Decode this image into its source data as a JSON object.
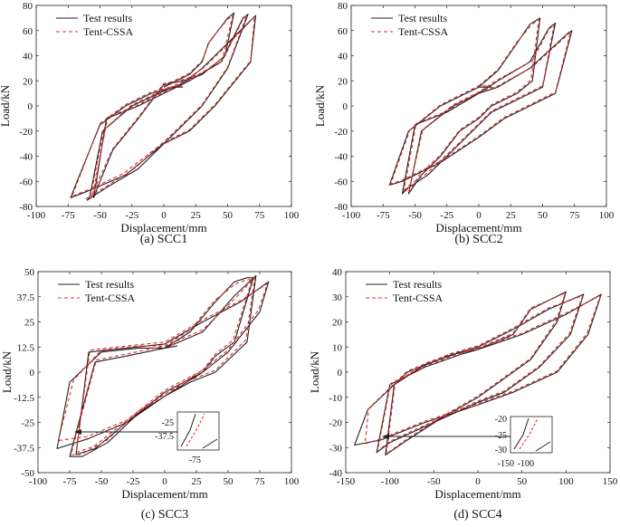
{
  "chart_data": [
    {
      "type": "line",
      "caption": "(a) SCC1",
      "xlabel": "Displacement/mm",
      "ylabel": "Load/kN",
      "xlim": [
        -100,
        100
      ],
      "ylim": [
        -80,
        80
      ],
      "xticks": [
        -100,
        -75,
        -50,
        -25,
        0,
        25,
        50,
        75,
        100
      ],
      "yticks": [
        -80,
        -60,
        -40,
        -20,
        0,
        20,
        40,
        60,
        80
      ],
      "legend": [
        "Test results",
        "Tent-CSSA"
      ],
      "legend_position": "top-left",
      "series": [
        {
          "name": "Test results",
          "x": [
            0,
            20,
            30,
            35,
            50,
            55,
            48,
            30,
            15,
            0,
            -20,
            -40,
            -50,
            -55,
            -45,
            -20,
            0,
            20,
            45,
            62,
            66,
            50,
            30,
            10,
            -20,
            -45,
            -60,
            -58,
            -48,
            -25,
            0,
            15,
            30,
            60,
            72,
            68,
            60,
            40,
            20,
            0,
            -30,
            -60,
            -73,
            -68,
            -50,
            -30,
            -10,
            5,
            10,
            15
          ],
          "y": [
            15,
            25,
            35,
            50,
            70,
            74,
            40,
            25,
            20,
            17,
            -10,
            -35,
            -60,
            -73,
            -10,
            0,
            10,
            20,
            35,
            70,
            73,
            30,
            0,
            -20,
            -50,
            -65,
            -75,
            -72,
            -20,
            0,
            12,
            18,
            30,
            60,
            72,
            35,
            25,
            0,
            -20,
            -30,
            -55,
            -68,
            -73,
            -60,
            -15,
            0,
            10,
            14,
            15,
            15
          ]
        },
        {
          "name": "Tent-CSSA",
          "x": [
            0,
            20,
            30,
            36,
            50,
            54,
            46,
            30,
            15,
            0,
            -20,
            -40,
            -52,
            -56,
            -44,
            -20,
            0,
            20,
            46,
            62,
            65,
            50,
            30,
            10,
            -22,
            -45,
            -61,
            -57,
            -47,
            -25,
            0,
            15,
            32,
            60,
            71,
            68,
            60,
            40,
            20,
            0,
            -32,
            -60,
            -72,
            -67,
            -50,
            -30,
            -10,
            5,
            10,
            15
          ],
          "y": [
            16,
            26,
            36,
            52,
            69,
            72,
            38,
            26,
            21,
            18,
            -9,
            -34,
            -61,
            -72,
            -9,
            1,
            11,
            21,
            36,
            69,
            72,
            31,
            1,
            -19,
            -49,
            -64,
            -74,
            -70,
            -19,
            1,
            13,
            19,
            31,
            59,
            71,
            36,
            26,
            1,
            -19,
            -29,
            -54,
            -67,
            -72,
            -59,
            -14,
            1,
            11,
            15,
            16,
            16
          ]
        }
      ]
    },
    {
      "type": "line",
      "caption": "(b) SCC2",
      "xlabel": "Displacement/mm",
      "ylabel": "Load/kN",
      "xlim": [
        -100,
        100
      ],
      "ylim": [
        -80,
        80
      ],
      "xticks": [
        -100,
        -75,
        -50,
        -25,
        0,
        25,
        50,
        75,
        100
      ],
      "yticks": [
        -80,
        -60,
        -40,
        -20,
        0,
        20,
        40,
        60,
        80
      ],
      "legend": [
        "Test results",
        "Tent-CSSA"
      ],
      "legend_position": "top-left",
      "series": [
        {
          "name": "Test results",
          "x": [
            0,
            15,
            30,
            40,
            48,
            42,
            30,
            10,
            0,
            -15,
            -30,
            -45,
            -55,
            -45,
            -20,
            0,
            15,
            40,
            55,
            60,
            50,
            30,
            10,
            -15,
            -40,
            -55,
            -60,
            -50,
            -25,
            0,
            15,
            40,
            70,
            73,
            60,
            40,
            20,
            0,
            -30,
            -60,
            -70,
            -55,
            -30,
            -10,
            0,
            10
          ],
          "y": [
            15,
            28,
            50,
            65,
            70,
            20,
            10,
            0,
            -10,
            -20,
            -40,
            -55,
            -70,
            -20,
            0,
            10,
            20,
            35,
            62,
            66,
            15,
            5,
            -5,
            -30,
            -55,
            -65,
            -70,
            -15,
            -5,
            10,
            15,
            30,
            58,
            60,
            10,
            0,
            -10,
            -25,
            -45,
            -60,
            -63,
            -20,
            0,
            10,
            15,
            15
          ]
        },
        {
          "name": "Tent-CSSA",
          "x": [
            0,
            15,
            30,
            41,
            47,
            41,
            30,
            10,
            0,
            -15,
            -30,
            -46,
            -55,
            -44,
            -20,
            0,
            15,
            42,
            55,
            59,
            50,
            30,
            10,
            -15,
            -41,
            -56,
            -59,
            -49,
            -25,
            0,
            15,
            42,
            70,
            72,
            60,
            40,
            20,
            0,
            -30,
            -60,
            -69,
            -54,
            -30,
            -10,
            0,
            10
          ],
          "y": [
            16,
            29,
            51,
            64,
            69,
            21,
            11,
            1,
            -9,
            -19,
            -39,
            -54,
            -69,
            -19,
            1,
            11,
            21,
            36,
            61,
            65,
            16,
            6,
            -4,
            -29,
            -54,
            -64,
            -69,
            -14,
            -4,
            11,
            16,
            31,
            57,
            59,
            11,
            1,
            -9,
            -24,
            -44,
            -59,
            -62,
            -19,
            1,
            11,
            16,
            16
          ]
        }
      ]
    },
    {
      "type": "line",
      "caption": "(c) SCC3",
      "xlabel": "Displacement/mm",
      "ylabel": "Load/kN",
      "xlim": [
        -100,
        100
      ],
      "ylim": [
        -50,
        50
      ],
      "xticks": [
        -100,
        -75,
        -50,
        -25,
        0,
        25,
        50,
        75,
        100
      ],
      "yticks": [
        -50,
        -37.5,
        -25,
        -12.5,
        0,
        12.5,
        25,
        37.5,
        50
      ],
      "legend": [
        "Test results",
        "Tent-CSSA"
      ],
      "legend_position": "top-left",
      "inset_labels": [
        "-25",
        "-37.5",
        "-75"
      ],
      "series": [
        {
          "name": "Test results",
          "x": [
            0,
            20,
            40,
            55,
            65,
            70,
            55,
            40,
            30,
            10,
            -20,
            -45,
            -65,
            -75,
            -55,
            -30,
            0,
            30,
            55,
            72,
            65,
            40,
            20,
            0,
            -30,
            -55,
            -70,
            -60,
            -30,
            0,
            30,
            60,
            82,
            75,
            50,
            30,
            0,
            -30,
            -60,
            -85,
            -75,
            -50,
            -20,
            0,
            10
          ],
          "y": [
            12,
            20,
            35,
            45,
            47,
            47,
            15,
            8,
            0,
            -8,
            -20,
            -35,
            -42,
            -42,
            5,
            8,
            12,
            20,
            38,
            48,
            15,
            0,
            -5,
            -12,
            -25,
            -38,
            -41,
            10,
            12,
            14,
            25,
            35,
            45,
            30,
            10,
            0,
            -10,
            -25,
            -33,
            -38,
            -5,
            10,
            12,
            12,
            13
          ]
        },
        {
          "name": "Tent-CSSA",
          "x": [
            0,
            20,
            40,
            56,
            65,
            69,
            54,
            40,
            30,
            10,
            -20,
            -46,
            -66,
            -74,
            -54,
            -30,
            0,
            30,
            56,
            71,
            64,
            40,
            20,
            0,
            -30,
            -56,
            -70,
            -59,
            -30,
            0,
            30,
            61,
            81,
            74,
            50,
            30,
            0,
            -30,
            -61,
            -84,
            -72,
            -50,
            -20,
            0,
            10
          ],
          "y": [
            13,
            21,
            36,
            44,
            46,
            46,
            16,
            9,
            1,
            -7,
            -19,
            -34,
            -41,
            -41,
            6,
            9,
            13,
            21,
            37,
            47,
            16,
            1,
            -4,
            -11,
            -24,
            -37,
            -40,
            11,
            13,
            15,
            26,
            36,
            44,
            31,
            11,
            1,
            -9,
            -24,
            -32,
            -34,
            -4,
            11,
            13,
            13,
            14
          ]
        }
      ]
    },
    {
      "type": "line",
      "caption": "(d) SCC4",
      "xlabel": "Displacement/mm",
      "ylabel": "Load/kN",
      "xlim": [
        -150,
        150
      ],
      "ylim": [
        -40,
        40
      ],
      "xticks": [
        -150,
        -100,
        -50,
        0,
        50,
        100,
        150
      ],
      "yticks": [
        -40,
        -30,
        -20,
        -10,
        0,
        10,
        20,
        30,
        40
      ],
      "legend": [
        "Test results",
        "Tent-CSSA"
      ],
      "legend_position": "top-left",
      "inset_labels": [
        "-20",
        "-25",
        "-30",
        "-150",
        "-100"
      ],
      "series": [
        {
          "name": "Test results",
          "x": [
            0,
            40,
            60,
            100,
            90,
            60,
            20,
            0,
            -40,
            -80,
            -105,
            -95,
            -60,
            -20,
            0,
            40,
            80,
            120,
            105,
            70,
            30,
            0,
            -50,
            -100,
            -115,
            -100,
            -60,
            -20,
            0,
            50,
            100,
            140,
            125,
            90,
            40,
            0,
            -60,
            -110,
            -140,
            -125,
            -80,
            -30,
            0
          ],
          "y": [
            9,
            15,
            25,
            32,
            20,
            5,
            -5,
            -10,
            -18,
            -27,
            -33,
            -5,
            3,
            8,
            10,
            17,
            25,
            31,
            15,
            2,
            -8,
            -12,
            -20,
            -28,
            -32,
            -5,
            2,
            7,
            9,
            15,
            23,
            31,
            15,
            0,
            -8,
            -13,
            -20,
            -27,
            -29,
            -15,
            0,
            7,
            9
          ]
        },
        {
          "name": "Tent-CSSA",
          "x": [
            0,
            40,
            60,
            99,
            89,
            60,
            20,
            0,
            -40,
            -80,
            -104,
            -94,
            -60,
            -20,
            0,
            40,
            80,
            119,
            104,
            70,
            30,
            0,
            -50,
            -100,
            -114,
            -99,
            -60,
            -20,
            0,
            50,
            100,
            139,
            124,
            90,
            40,
            0,
            -60,
            -110,
            -128,
            -124,
            -80,
            -30,
            0
          ],
          "y": [
            9.5,
            15.5,
            25.5,
            31.5,
            20.5,
            5.5,
            -4.5,
            -9.5,
            -17.5,
            -26.5,
            -32.5,
            -4.5,
            3.5,
            8.5,
            10.5,
            17.5,
            25.5,
            30.5,
            15.5,
            2.5,
            -7.5,
            -11.5,
            -19.5,
            -27.5,
            -31.5,
            -4.5,
            2.5,
            7.5,
            9.5,
            15.5,
            23.5,
            30.5,
            15.5,
            0.5,
            -7.5,
            -12.5,
            -19.5,
            -26.5,
            -28.5,
            -14.5,
            0.5,
            7.5,
            9.5
          ]
        }
      ]
    }
  ]
}
